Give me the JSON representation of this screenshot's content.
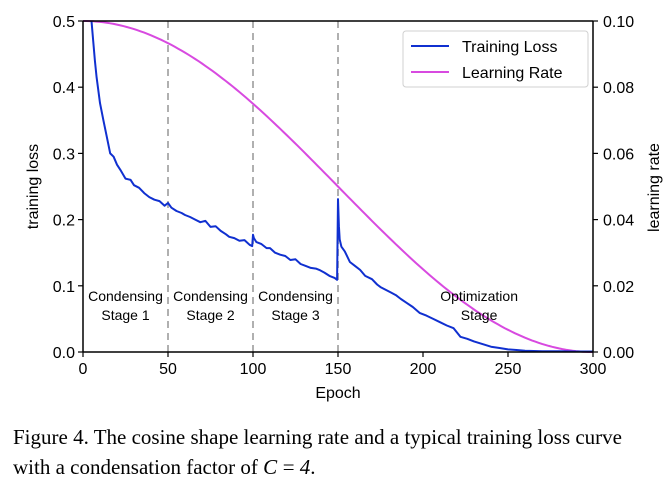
{
  "chart_data": {
    "type": "line",
    "title": "",
    "xlabel": "Epoch",
    "ylabel": "training loss",
    "y2label": "learning rate",
    "xlim": [
      0,
      300
    ],
    "ylim": [
      0,
      0.5
    ],
    "y2lim": [
      0,
      0.1
    ],
    "xticks": [
      "0",
      "50",
      "100",
      "150",
      "200",
      "250",
      "300"
    ],
    "yticks": [
      "0.0",
      "0.1",
      "0.2",
      "0.3",
      "0.4",
      "0.5"
    ],
    "y2ticks": [
      "0.00",
      "0.02",
      "0.04",
      "0.06",
      "0.08",
      "0.10"
    ],
    "grid": false,
    "legend_position": "top-right",
    "series": [
      {
        "name": "Training Loss",
        "axis": "left",
        "color": "#1030d0",
        "x": [
          5,
          6,
          7,
          8,
          10,
          12,
          14,
          16,
          18,
          20,
          22,
          25,
          28,
          30,
          33,
          36,
          39,
          42,
          45,
          48,
          50,
          52,
          55,
          58,
          60,
          63,
          66,
          69,
          72,
          75,
          78,
          81,
          84,
          86,
          89,
          92,
          95,
          98,
          99.5,
          100,
          100.5,
          102,
          105,
          108,
          110,
          113,
          116,
          119,
          122,
          125,
          128,
          131,
          134,
          137,
          139,
          142,
          145,
          148,
          149.5,
          150,
          150.5,
          151,
          152,
          154,
          157,
          160,
          163,
          166,
          170,
          173,
          175,
          178,
          181,
          184,
          187,
          190,
          194,
          198,
          202,
          206,
          210,
          214,
          218,
          222,
          226,
          230,
          235,
          240,
          245,
          250,
          255,
          260,
          265,
          270,
          280,
          290,
          300
        ],
        "y": [
          0.5,
          0.47,
          0.44,
          0.415,
          0.376,
          0.35,
          0.325,
          0.3,
          0.295,
          0.283,
          0.275,
          0.262,
          0.26,
          0.252,
          0.248,
          0.24,
          0.234,
          0.23,
          0.228,
          0.221,
          0.225,
          0.218,
          0.213,
          0.21,
          0.207,
          0.204,
          0.2,
          0.196,
          0.198,
          0.189,
          0.19,
          0.183,
          0.178,
          0.174,
          0.172,
          0.168,
          0.169,
          0.162,
          0.16,
          0.177,
          0.172,
          0.166,
          0.163,
          0.157,
          0.157,
          0.15,
          0.147,
          0.145,
          0.139,
          0.14,
          0.133,
          0.13,
          0.127,
          0.126,
          0.124,
          0.12,
          0.115,
          0.112,
          0.109,
          0.231,
          0.19,
          0.17,
          0.159,
          0.152,
          0.136,
          0.13,
          0.124,
          0.115,
          0.11,
          0.102,
          0.098,
          0.094,
          0.09,
          0.086,
          0.08,
          0.075,
          0.068,
          0.059,
          0.055,
          0.05,
          0.045,
          0.04,
          0.036,
          0.023,
          0.02,
          0.016,
          0.012,
          0.008,
          0.006,
          0.004,
          0.003,
          0.002,
          0.0015,
          0.001,
          0.001,
          0.0008,
          0.0008
        ]
      },
      {
        "name": "Learning Rate",
        "axis": "right",
        "color": "#d84ae0",
        "function": "0.05*(1+cos(pi*epoch/300))",
        "x_range": [
          0,
          300
        ],
        "start_value": 0.1,
        "end_value": 0.0
      }
    ],
    "vlines": {
      "x": [
        50,
        100,
        150
      ],
      "style": "dashed",
      "color": "#b0b0b0"
    },
    "annotations": [
      {
        "x": 25,
        "lines": [
          "Condensing",
          "Stage 1"
        ]
      },
      {
        "x": 75,
        "lines": [
          "Condensing",
          "Stage 2"
        ]
      },
      {
        "x": 125,
        "lines": [
          "Condensing",
          "Stage 3"
        ]
      },
      {
        "x": 233,
        "lines": [
          "Optimization",
          "Stage"
        ]
      }
    ]
  },
  "caption": {
    "prefix": "Figure 4. The cosine shape learning rate and a typical training loss curve with a condensation factor of ",
    "math": "C = 4",
    "suffix": "."
  }
}
